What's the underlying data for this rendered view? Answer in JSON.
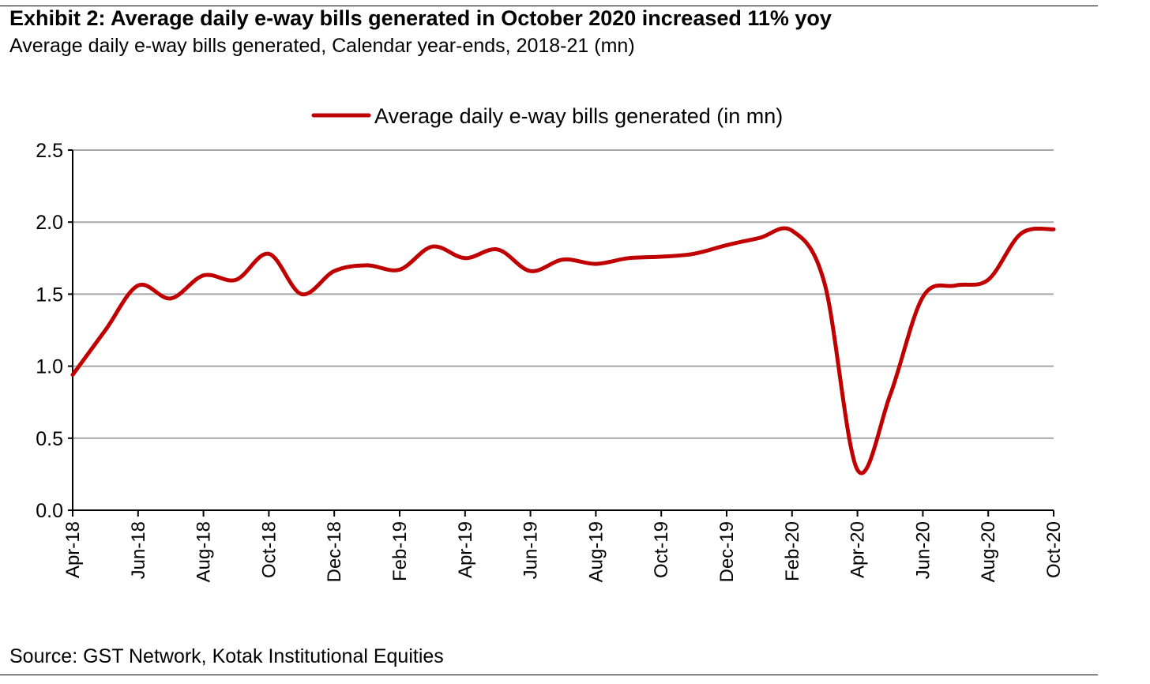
{
  "header": {
    "title": "Exhibit 2: Average daily e-way bills generated in October 2020 increased 11% yoy",
    "subtitle": "Average daily e-way bills generated, Calendar year-ends, 2018-21 (mn)"
  },
  "footer": {
    "source": "Source: GST Network, Kotak Institutional Equities"
  },
  "colors": {
    "series": "#c00000",
    "grid": "#a6a6a6",
    "axis": "#000000"
  },
  "chart_data": {
    "type": "line",
    "title": "Exhibit 2: Average daily e-way bills generated in October 2020 increased 11% yoy",
    "subtitle": "Average daily e-way bills generated, Calendar year-ends, 2018-21 (mn)",
    "xlabel": "",
    "ylabel": "",
    "ylim": [
      0,
      2.5
    ],
    "yticks": [
      "0.0",
      "0.5",
      "1.0",
      "1.5",
      "2.0",
      "2.5"
    ],
    "grid": true,
    "legend": "top-center",
    "x": [
      "Apr-18",
      "May-18",
      "Jun-18",
      "Jul-18",
      "Aug-18",
      "Sep-18",
      "Oct-18",
      "Nov-18",
      "Dec-18",
      "Jan-19",
      "Feb-19",
      "Mar-19",
      "Apr-19",
      "May-19",
      "Jun-19",
      "Jul-19",
      "Aug-19",
      "Sep-19",
      "Oct-19",
      "Nov-19",
      "Dec-19",
      "Jan-20",
      "Feb-20",
      "Mar-20",
      "Apr-20",
      "May-20",
      "Jun-20",
      "Jul-20",
      "Aug-20",
      "Sep-20",
      "Oct-20"
    ],
    "xtick_labels": [
      "Apr-18",
      "Jun-18",
      "Aug-18",
      "Oct-18",
      "Dec-18",
      "Feb-19",
      "Apr-19",
      "Jun-19",
      "Aug-19",
      "Oct-19",
      "Dec-19",
      "Feb-20",
      "Apr-20",
      "Jun-20",
      "Aug-20",
      "Oct-20"
    ],
    "series": [
      {
        "name": "Average daily e-way bills generated (in mn)",
        "values": [
          0.94,
          1.25,
          1.56,
          1.47,
          1.63,
          1.6,
          1.78,
          1.5,
          1.66,
          1.7,
          1.67,
          1.83,
          1.75,
          1.81,
          1.66,
          1.74,
          1.71,
          1.75,
          1.76,
          1.78,
          1.84,
          1.89,
          1.94,
          1.57,
          0.28,
          0.8,
          1.48,
          1.56,
          1.6,
          1.92,
          1.95
        ]
      }
    ]
  }
}
